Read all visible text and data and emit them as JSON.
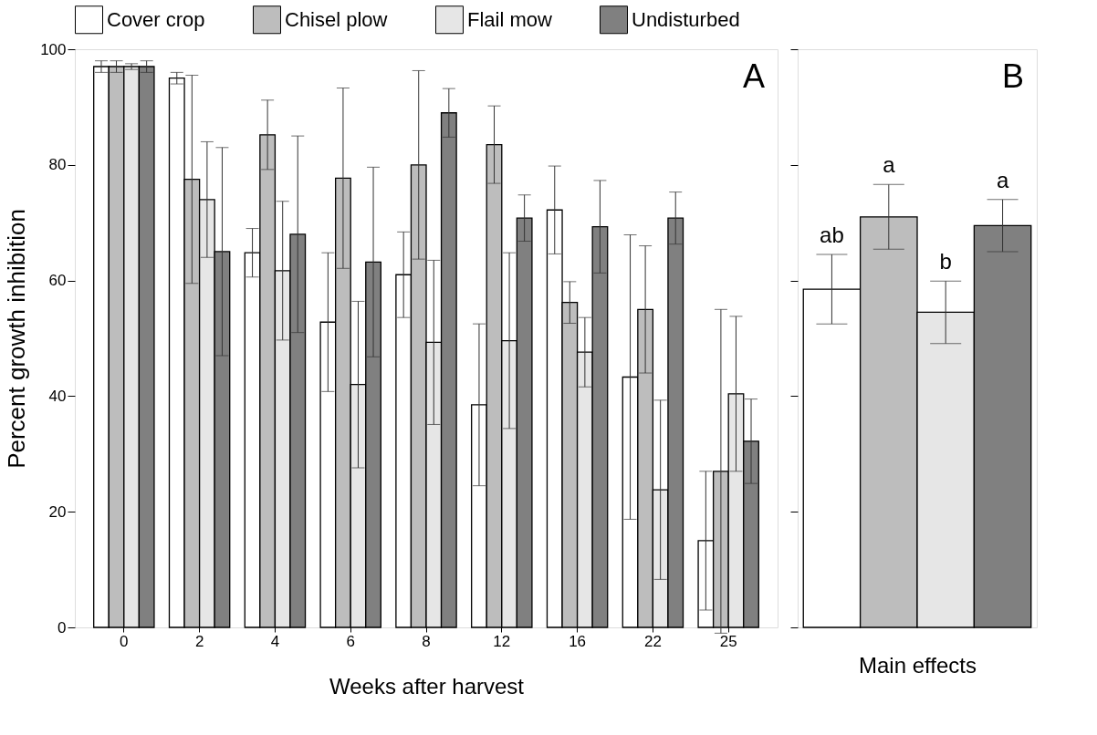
{
  "chart_data": [
    {
      "type": "bar",
      "categories": [
        "0",
        "2",
        "4",
        "6",
        "8",
        "12",
        "16",
        "22",
        "25"
      ],
      "xlabel": "Weeks after harvest",
      "ylabel": "Percent growth inhibition",
      "ylim": [
        0,
        100
      ],
      "yticks": [
        0,
        20,
        40,
        60,
        80,
        100
      ],
      "grid": false,
      "legend": "top",
      "annotations": [
        "A"
      ],
      "series": [
        {
          "name": "Cover crop",
          "color": "#ffffff",
          "values": [
            97,
            95,
            64.8,
            52.8,
            61,
            38.5,
            72.2,
            43.3,
            15
          ],
          "errors": [
            1,
            1,
            4.2,
            12,
            7.4,
            14,
            7.6,
            24.6,
            12
          ]
        },
        {
          "name": "Chisel plow",
          "color": "#bdbdbd",
          "values": [
            97,
            77.5,
            85.2,
            77.7,
            80,
            83.5,
            56.2,
            55,
            27
          ],
          "errors": [
            1,
            18,
            6,
            15.6,
            16.3,
            6.7,
            3.6,
            11,
            28
          ]
        },
        {
          "name": "Flail mow",
          "color": "#e6e6e6",
          "values": [
            97,
            74,
            61.7,
            42,
            49.3,
            49.6,
            47.6,
            23.8,
            40.4
          ],
          "errors": [
            0.5,
            10,
            12,
            14.4,
            14.2,
            15.2,
            6,
            15.5,
            13.4
          ]
        },
        {
          "name": "Undisturbed",
          "color": "#808080",
          "values": [
            97,
            65,
            68,
            63.2,
            89,
            70.8,
            69.3,
            70.8,
            32.2
          ],
          "errors": [
            1,
            18,
            17,
            16.4,
            4.2,
            4,
            8,
            4.5,
            7.3
          ]
        }
      ]
    },
    {
      "type": "bar",
      "categories": [
        null,
        null,
        null,
        null
      ],
      "xlabel": "Main effects",
      "ylim": [
        0,
        100
      ],
      "yticks": [
        0,
        20,
        40,
        60,
        80,
        100
      ],
      "grid": false,
      "tick_labels": false,
      "values": [
        58.5,
        71,
        54.5,
        69.5
      ],
      "errors": [
        6,
        5.6,
        5.4,
        4.5
      ],
      "colors": [
        "#ffffff",
        "#bdbdbd",
        "#e6e6e6",
        "#808080"
      ],
      "annotations": [
        "B",
        "ab",
        "a",
        "b",
        "a"
      ]
    }
  ]
}
